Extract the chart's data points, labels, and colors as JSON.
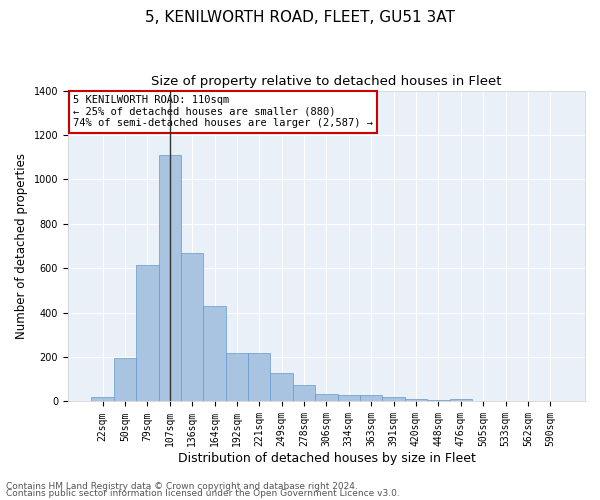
{
  "title": "5, KENILWORTH ROAD, FLEET, GU51 3AT",
  "subtitle": "Size of property relative to detached houses in Fleet",
  "xlabel": "Distribution of detached houses by size in Fleet",
  "ylabel": "Number of detached properties",
  "categories": [
    "22sqm",
    "50sqm",
    "79sqm",
    "107sqm",
    "136sqm",
    "164sqm",
    "192sqm",
    "221sqm",
    "249sqm",
    "278sqm",
    "306sqm",
    "334sqm",
    "363sqm",
    "391sqm",
    "420sqm",
    "448sqm",
    "476sqm",
    "505sqm",
    "533sqm",
    "562sqm",
    "590sqm"
  ],
  "values": [
    20,
    195,
    615,
    1110,
    670,
    430,
    218,
    218,
    130,
    75,
    35,
    30,
    28,
    18,
    10,
    5,
    10,
    0,
    0,
    0,
    0
  ],
  "bar_color": "#a8c4e0",
  "bar_edgecolor": "#6699cc",
  "background_color": "#eaf0f8",
  "grid_color": "#ffffff",
  "annotation_line1": "5 KENILWORTH ROAD: 110sqm",
  "annotation_line2": "← 25% of detached houses are smaller (880)",
  "annotation_line3": "74% of semi-detached houses are larger (2,587) →",
  "annotation_box_color": "#cc0000",
  "vline_x_index": 3,
  "ylim": [
    0,
    1400
  ],
  "yticks": [
    0,
    200,
    400,
    600,
    800,
    1000,
    1200,
    1400
  ],
  "footer_line1": "Contains HM Land Registry data © Crown copyright and database right 2024.",
  "footer_line2": "Contains public sector information licensed under the Open Government Licence v3.0.",
  "title_fontsize": 11,
  "subtitle_fontsize": 9.5,
  "xlabel_fontsize": 9,
  "ylabel_fontsize": 8.5,
  "tick_fontsize": 7,
  "annotation_fontsize": 7.5,
  "footer_fontsize": 6.5
}
